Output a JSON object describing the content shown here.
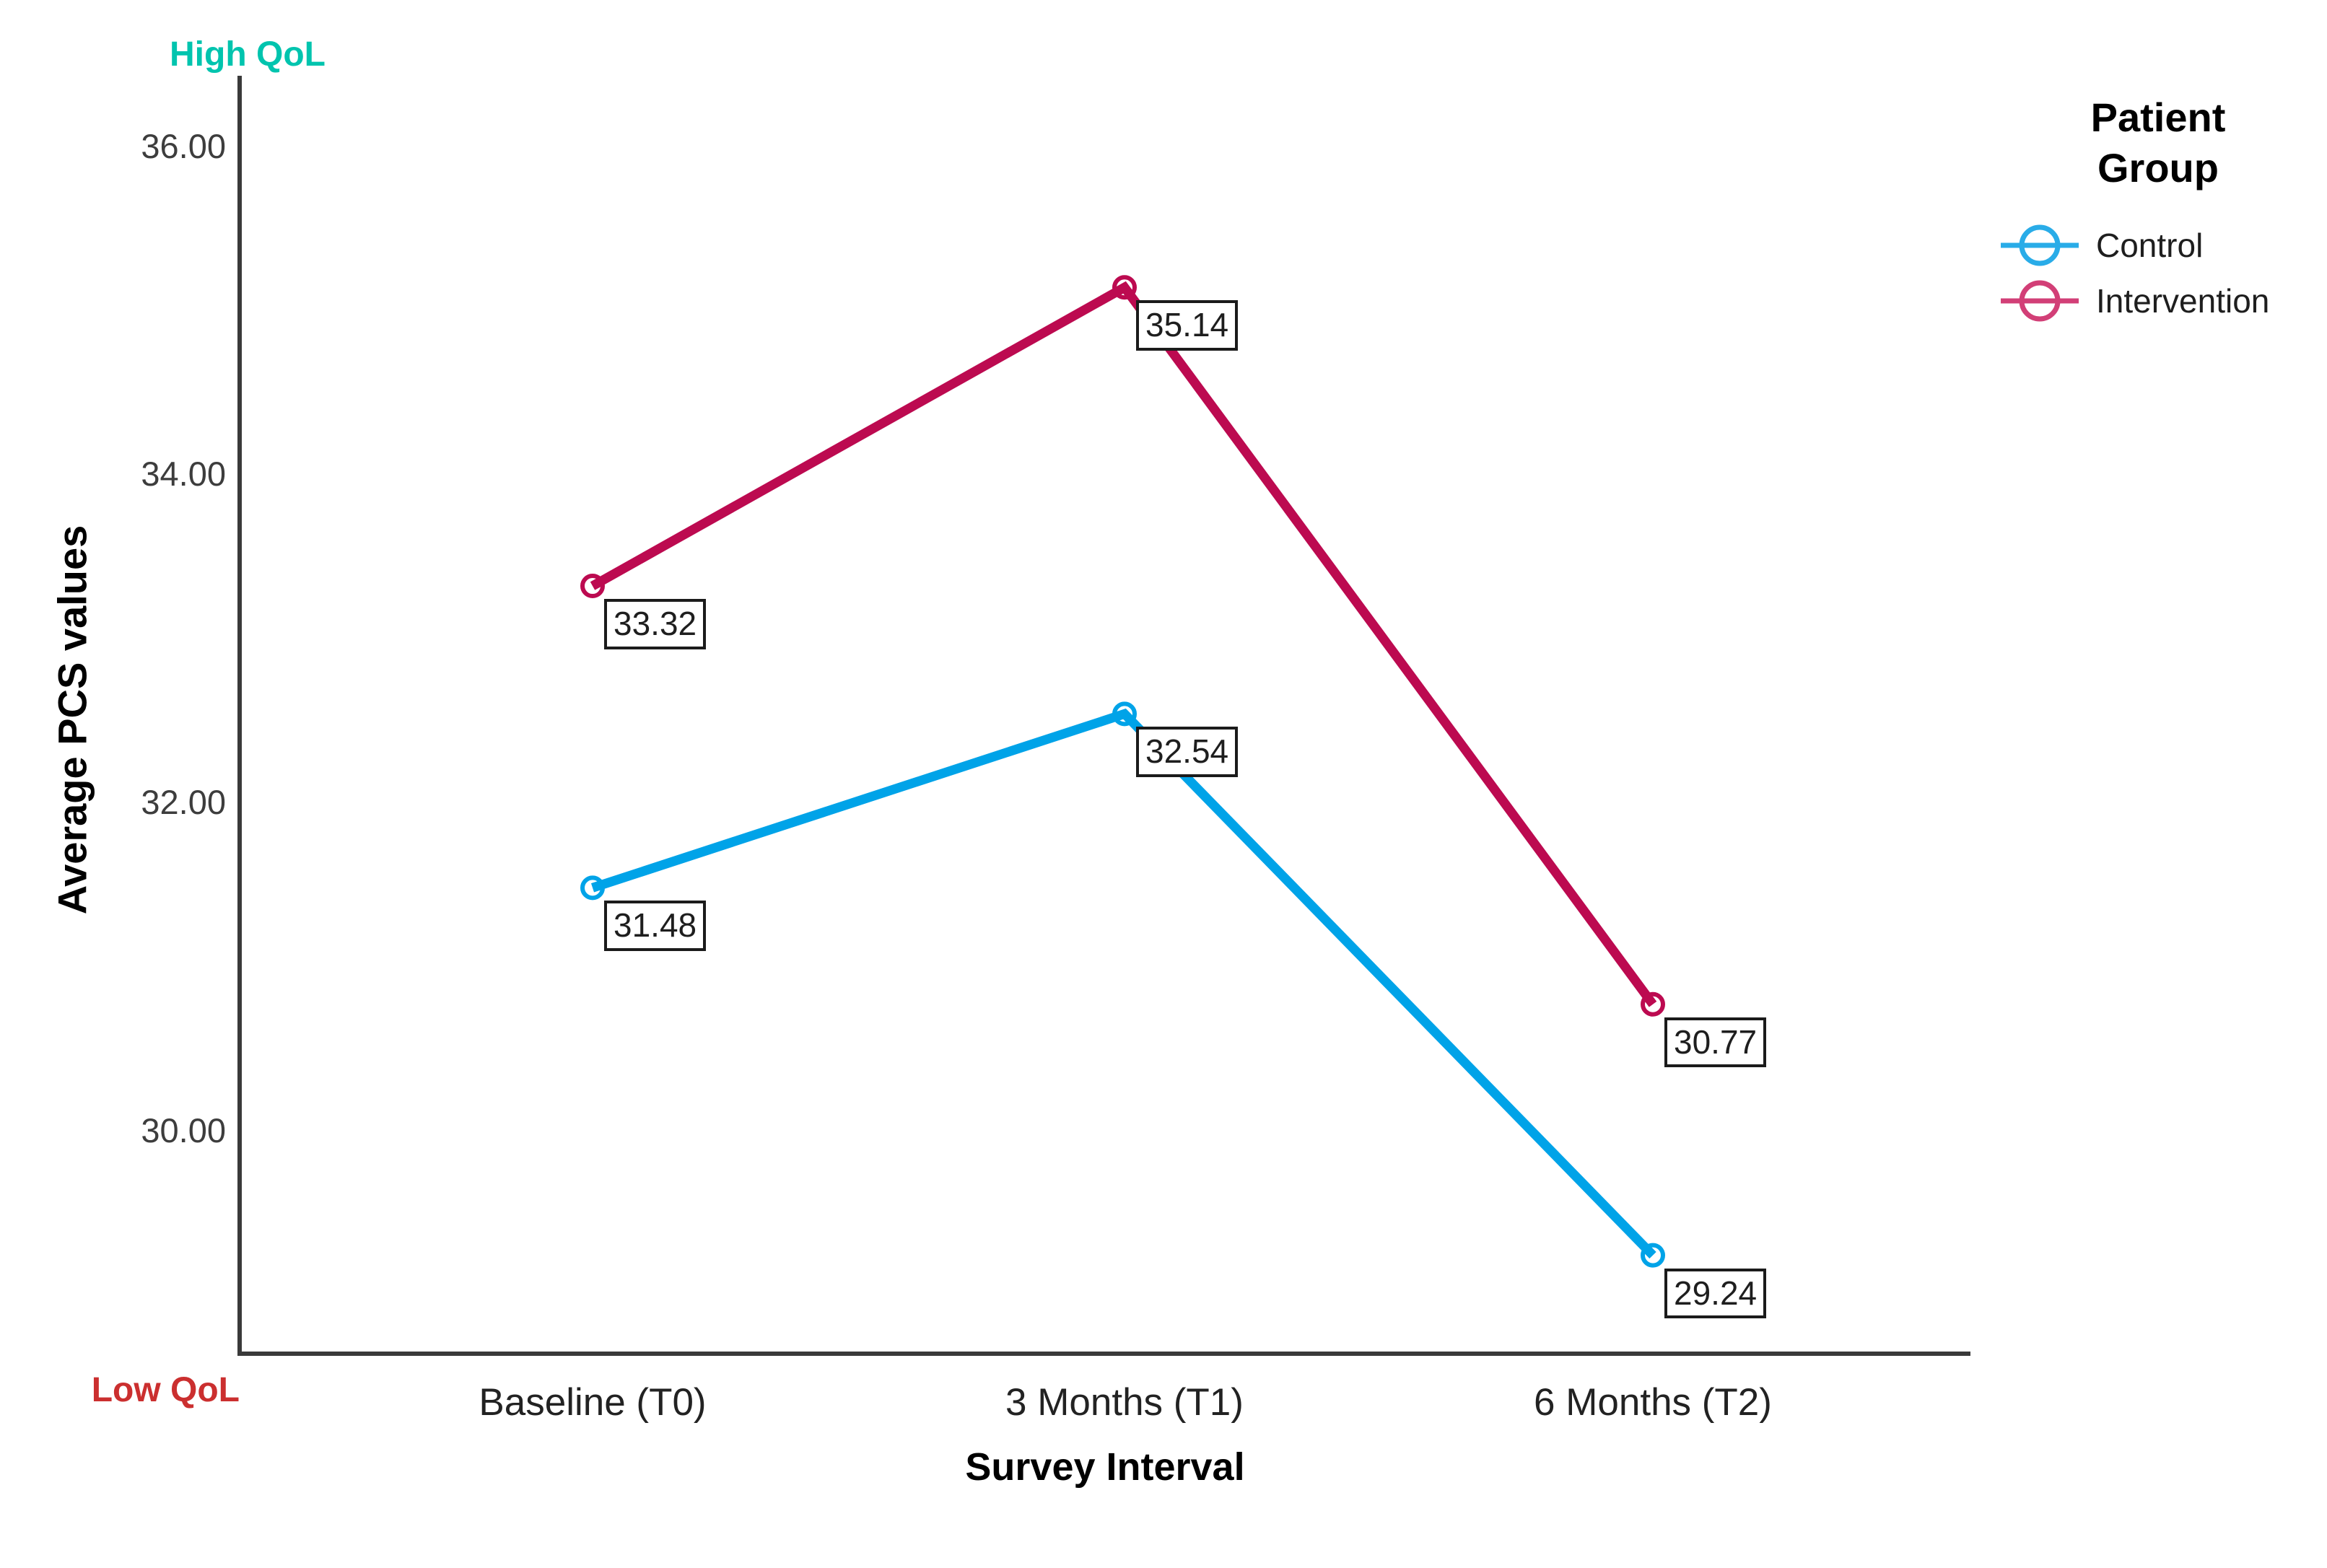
{
  "chart_data": {
    "type": "line",
    "title": "",
    "xlabel": "Survey Interval",
    "ylabel": "Average PCS values",
    "x": [
      "Baseline (T0)",
      "3 Months (T1)",
      "6 Months (T2)"
    ],
    "yticks": [
      30,
      32,
      34,
      36
    ],
    "ytick_labels": [
      "30.00",
      "32.00",
      "34.00",
      "36.00"
    ],
    "ylim": [
      28.64,
      36.43
    ],
    "grid": false,
    "legend": {
      "title": "Patient\nGroup",
      "position": "top-right"
    },
    "series": [
      {
        "name": "Control",
        "values": [
          31.48,
          32.54,
          29.24
        ],
        "point_labels": [
          "31.48",
          "32.54",
          "29.24"
        ],
        "color": "#00A3E8",
        "legend_color": "#29ACE8"
      },
      {
        "name": "Intervention",
        "values": [
          33.32,
          35.14,
          30.77
        ],
        "point_labels": [
          "33.32",
          "35.14",
          "30.77"
        ],
        "color": "#BC0A50",
        "legend_color": "#D23F77"
      }
    ],
    "annotations": [
      {
        "text": "High QoL",
        "color": "#00C4AE",
        "position": "above-y-axis"
      },
      {
        "text": "Low QoL",
        "color": "#CB2F2F",
        "position": "below-x-origin"
      }
    ]
  },
  "colors": {
    "axis": "#3a3a3a",
    "tick_text": "#3d3d3d",
    "label_box_border": "#1b1b1b"
  }
}
